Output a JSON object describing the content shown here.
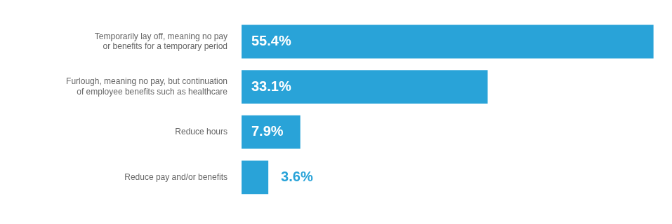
{
  "chart_data": {
    "type": "bar",
    "orientation": "horizontal",
    "categories": [
      "Temporarily lay off, meaning no pay or benefits for a temporary period",
      "Furlough, meaning no pay, but continuation of employee benefits such as healthcare",
      "Reduce hours",
      "Reduce pay and/or benefits"
    ],
    "values": [
      55.4,
      33.1,
      7.9,
      3.6
    ],
    "value_labels": [
      "55.4%",
      "33.1%",
      "7.9%",
      "3.6%"
    ],
    "data_labels": true,
    "color": "#29a3d8",
    "xlim": [
      0,
      56
    ],
    "grid": false,
    "tick_labels": "y"
  }
}
